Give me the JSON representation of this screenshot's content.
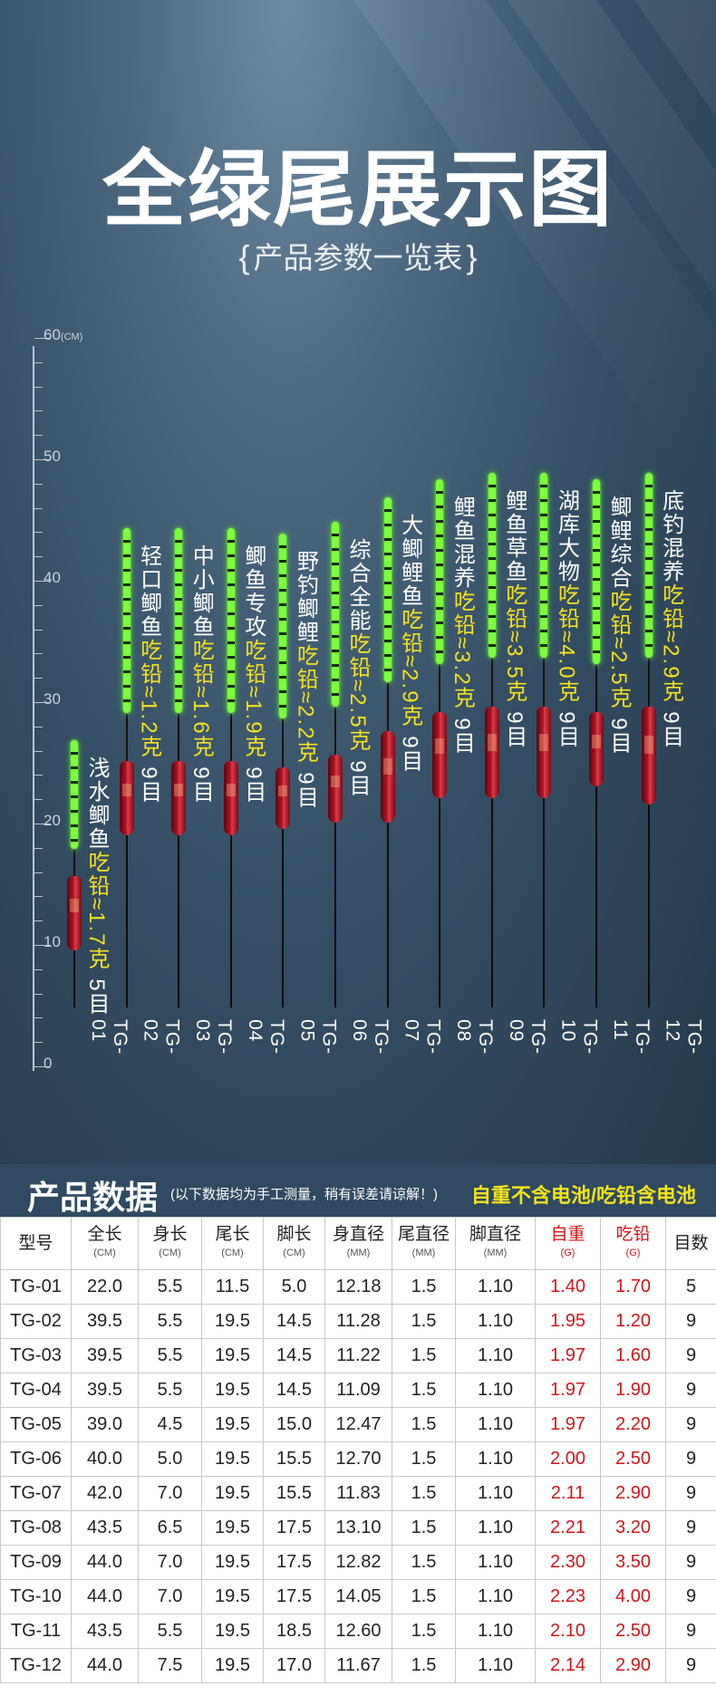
{
  "title": "全绿尾展示图",
  "subtitle": "产品参数一览表",
  "ruler": {
    "unit": "(CM)",
    "labels": [
      "60",
      "50",
      "40",
      "30",
      "20",
      "10",
      "0"
    ]
  },
  "floats": [
    {
      "code": "TG-01",
      "name": "浅水鲫鱼",
      "lead": "吃铅≈1.7克",
      "mesh": "5目",
      "total_length": 22.0,
      "tail_length": 11.5,
      "foot_length": 5.0
    },
    {
      "code": "TG-02",
      "name": "轻口鲫鱼",
      "lead": "吃铅≈1.2克",
      "mesh": "9目",
      "total_length": 39.5,
      "tail_length": 19.5,
      "foot_length": 14.5
    },
    {
      "code": "TG-03",
      "name": "中小鲫鱼",
      "lead": "吃铅≈1.6克",
      "mesh": "9目",
      "total_length": 39.5,
      "tail_length": 19.5,
      "foot_length": 14.5
    },
    {
      "code": "TG-04",
      "name": "鲫鱼专攻",
      "lead": "吃铅≈1.9克",
      "mesh": "9目",
      "total_length": 39.5,
      "tail_length": 19.5,
      "foot_length": 14.5
    },
    {
      "code": "TG-05",
      "name": "野钓鲫鲤",
      "lead": "吃铅≈2.2克",
      "mesh": "9目",
      "total_length": 39.0,
      "tail_length": 19.5,
      "foot_length": 15.0
    },
    {
      "code": "TG-06",
      "name": "综合全能",
      "lead": "吃铅≈2.5克",
      "mesh": "9目",
      "total_length": 40.0,
      "tail_length": 19.5,
      "foot_length": 15.5
    },
    {
      "code": "TG-07",
      "name": "大鲫鲤鱼",
      "lead": "吃铅≈2.9克",
      "mesh": "9目",
      "total_length": 42.0,
      "tail_length": 19.5,
      "foot_length": 15.5
    },
    {
      "code": "TG-08",
      "name": "鲤鱼混养",
      "lead": "吃铅≈3.2克",
      "mesh": "9目",
      "total_length": 43.5,
      "tail_length": 19.5,
      "foot_length": 17.5
    },
    {
      "code": "TG-09",
      "name": "鲤鱼草鱼",
      "lead": "吃铅≈3.5克",
      "mesh": "9目",
      "total_length": 44.0,
      "tail_length": 19.5,
      "foot_length": 17.5
    },
    {
      "code": "TG-10",
      "name": "湖库大物",
      "lead": "吃铅≈4.0克",
      "mesh": "9目",
      "total_length": 44.0,
      "tail_length": 19.5,
      "foot_length": 17.5
    },
    {
      "code": "TG-11",
      "name": "鲫鲤综合",
      "lead": "吃铅≈2.5克",
      "mesh": "9目",
      "total_length": 43.5,
      "tail_length": 19.5,
      "foot_length": 18.5
    },
    {
      "code": "TG-12",
      "name": "底钓混养",
      "lead": "吃铅≈2.9克",
      "mesh": "9目",
      "total_length": 44.0,
      "tail_length": 19.5,
      "foot_length": 17.0
    }
  ],
  "data_section": {
    "title": "产品数据",
    "note": "(以下数据均为手工测量，稍有误差请谅解！)",
    "right_note": "自重不含电池/吃铅含电池",
    "headers": [
      {
        "label": "型号",
        "unit": ""
      },
      {
        "label": "全长",
        "unit": "(CM)"
      },
      {
        "label": "身长",
        "unit": "(CM)"
      },
      {
        "label": "尾长",
        "unit": "(CM)"
      },
      {
        "label": "脚长",
        "unit": "(CM)"
      },
      {
        "label": "身直径",
        "unit": "(MM)"
      },
      {
        "label": "尾直径",
        "unit": "(MM)"
      },
      {
        "label": "脚直径",
        "unit": "(MM)"
      },
      {
        "label": "自重",
        "unit": "(G)"
      },
      {
        "label": "吃铅",
        "unit": "(G)"
      },
      {
        "label": "目数",
        "unit": ""
      }
    ],
    "rows": [
      [
        "TG-01",
        "22.0",
        "5.5",
        "11.5",
        "5.0",
        "12.18",
        "1.5",
        "1.10",
        "1.40",
        "1.70",
        "5"
      ],
      [
        "TG-02",
        "39.5",
        "5.5",
        "19.5",
        "14.5",
        "11.28",
        "1.5",
        "1.10",
        "1.95",
        "1.20",
        "9"
      ],
      [
        "TG-03",
        "39.5",
        "5.5",
        "19.5",
        "14.5",
        "11.22",
        "1.5",
        "1.10",
        "1.97",
        "1.60",
        "9"
      ],
      [
        "TG-04",
        "39.5",
        "5.5",
        "19.5",
        "14.5",
        "11.09",
        "1.5",
        "1.10",
        "1.97",
        "1.90",
        "9"
      ],
      [
        "TG-05",
        "39.0",
        "4.5",
        "19.5",
        "15.0",
        "12.47",
        "1.5",
        "1.10",
        "1.97",
        "2.20",
        "9"
      ],
      [
        "TG-06",
        "40.0",
        "5.0",
        "19.5",
        "15.5",
        "12.70",
        "1.5",
        "1.10",
        "2.00",
        "2.50",
        "9"
      ],
      [
        "TG-07",
        "42.0",
        "7.0",
        "19.5",
        "15.5",
        "11.83",
        "1.5",
        "1.10",
        "2.11",
        "2.90",
        "9"
      ],
      [
        "TG-08",
        "43.5",
        "6.5",
        "19.5",
        "17.5",
        "13.10",
        "1.5",
        "1.10",
        "2.21",
        "3.20",
        "9"
      ],
      [
        "TG-09",
        "44.0",
        "7.0",
        "19.5",
        "17.5",
        "12.82",
        "1.5",
        "1.10",
        "2.30",
        "3.50",
        "9"
      ],
      [
        "TG-10",
        "44.0",
        "7.0",
        "19.5",
        "17.5",
        "14.05",
        "1.5",
        "1.10",
        "2.23",
        "4.00",
        "9"
      ],
      [
        "TG-11",
        "43.5",
        "5.5",
        "19.5",
        "18.5",
        "12.60",
        "1.5",
        "1.10",
        "2.10",
        "2.50",
        "9"
      ],
      [
        "TG-12",
        "44.0",
        "7.5",
        "19.5",
        "17.0",
        "11.67",
        "1.5",
        "1.10",
        "2.14",
        "2.90",
        "9"
      ]
    ]
  }
}
